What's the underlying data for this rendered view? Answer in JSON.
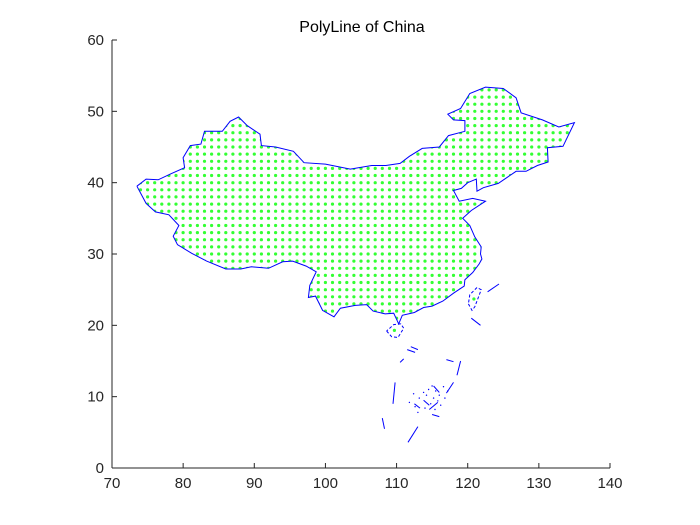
{
  "chart_data": {
    "type": "scatter",
    "title": "PolyLine of China",
    "xlabel": "",
    "ylabel": "",
    "xlim": [
      70,
      140
    ],
    "ylim": [
      0,
      60
    ],
    "xticks": [
      70,
      80,
      90,
      100,
      110,
      120,
      130,
      140
    ],
    "yticks": [
      0,
      10,
      20,
      30,
      40,
      50,
      60
    ],
    "grid": false,
    "legend": "none",
    "series": [
      {
        "kind": "polyline-outline",
        "color": "#0000ff",
        "style": "solid",
        "coords": [
          [
            73.5,
            39.5
          ],
          [
            74.8,
            40.5
          ],
          [
            76.5,
            40.4
          ],
          [
            78.2,
            41.2
          ],
          [
            80.2,
            42.1
          ],
          [
            80.0,
            43.5
          ],
          [
            81.0,
            45.2
          ],
          [
            82.5,
            45.4
          ],
          [
            83.0,
            47.2
          ],
          [
            85.5,
            47.2
          ],
          [
            86.6,
            48.6
          ],
          [
            87.8,
            49.2
          ],
          [
            89.0,
            48.0
          ],
          [
            90.8,
            46.8
          ],
          [
            91.0,
            45.2
          ],
          [
            93.0,
            45.0
          ],
          [
            95.5,
            44.4
          ],
          [
            97.0,
            42.8
          ],
          [
            100.0,
            42.6
          ],
          [
            103.5,
            41.9
          ],
          [
            106.5,
            42.4
          ],
          [
            108.5,
            42.4
          ],
          [
            110.5,
            42.7
          ],
          [
            111.8,
            43.7
          ],
          [
            113.6,
            44.8
          ],
          [
            116.0,
            45.0
          ],
          [
            117.3,
            46.6
          ],
          [
            119.6,
            47.2
          ],
          [
            119.6,
            48.7
          ],
          [
            118.0,
            48.8
          ],
          [
            117.2,
            49.6
          ],
          [
            119.0,
            50.4
          ],
          [
            120.3,
            52.5
          ],
          [
            122.5,
            53.4
          ],
          [
            125.0,
            53.2
          ],
          [
            126.8,
            51.9
          ],
          [
            127.5,
            49.8
          ],
          [
            130.5,
            48.8
          ],
          [
            132.8,
            47.8
          ],
          [
            135.0,
            48.4
          ],
          [
            133.4,
            45.1
          ],
          [
            131.2,
            44.9
          ],
          [
            131.3,
            42.9
          ],
          [
            129.8,
            42.4
          ],
          [
            128.2,
            41.6
          ],
          [
            126.8,
            41.6
          ],
          [
            124.3,
            39.9
          ],
          [
            122.2,
            39.3
          ],
          [
            121.3,
            38.8
          ],
          [
            121.2,
            40.5
          ],
          [
            120.0,
            40.0
          ],
          [
            119.1,
            39.2
          ],
          [
            118.0,
            38.9
          ],
          [
            118.8,
            37.4
          ],
          [
            120.7,
            37.8
          ],
          [
            122.5,
            37.4
          ],
          [
            120.5,
            36.1
          ],
          [
            119.3,
            35.0
          ],
          [
            120.3,
            34.0
          ],
          [
            121.0,
            32.4
          ],
          [
            121.9,
            31.0
          ],
          [
            121.8,
            30.0
          ],
          [
            122.0,
            29.3
          ],
          [
            121.6,
            28.6
          ],
          [
            120.7,
            27.4
          ],
          [
            119.6,
            26.4
          ],
          [
            119.5,
            25.5
          ],
          [
            118.0,
            24.5
          ],
          [
            116.5,
            23.4
          ],
          [
            115.0,
            22.7
          ],
          [
            113.8,
            22.5
          ],
          [
            112.5,
            21.8
          ],
          [
            110.8,
            21.4
          ],
          [
            110.3,
            20.2
          ],
          [
            109.6,
            21.7
          ],
          [
            108.4,
            21.6
          ],
          [
            106.7,
            22.0
          ],
          [
            105.8,
            22.9
          ],
          [
            104.2,
            22.8
          ],
          [
            102.1,
            22.4
          ],
          [
            101.2,
            21.2
          ],
          [
            99.6,
            22.1
          ],
          [
            98.6,
            24.1
          ],
          [
            97.6,
            23.9
          ],
          [
            97.8,
            25.6
          ],
          [
            98.7,
            27.5
          ],
          [
            97.3,
            28.3
          ],
          [
            95.4,
            29.0
          ],
          [
            94.0,
            28.9
          ],
          [
            92.0,
            28.0
          ],
          [
            89.6,
            28.2
          ],
          [
            88.1,
            27.9
          ],
          [
            86.0,
            27.9
          ],
          [
            83.3,
            29.0
          ],
          [
            81.2,
            30.1
          ],
          [
            79.2,
            31.3
          ],
          [
            78.6,
            32.5
          ],
          [
            79.4,
            34.0
          ],
          [
            78.0,
            35.5
          ],
          [
            76.1,
            35.9
          ],
          [
            74.8,
            37.1
          ],
          [
            73.5,
            39.5
          ]
        ]
      },
      {
        "kind": "fill-dots",
        "color": "#33ff33",
        "spacing_deg": 1,
        "marker": "point"
      },
      {
        "kind": "island-outlines",
        "color": "#0000ff",
        "style": "dashed",
        "islands": [
          [
            [
              120.1,
              23.0
            ],
            [
              120.6,
              22.1
            ],
            [
              121.0,
              22.6
            ],
            [
              121.6,
              24.2
            ],
            [
              121.9,
              25.0
            ],
            [
              121.3,
              25.3
            ],
            [
              120.3,
              24.3
            ],
            [
              120.1,
              23.0
            ]
          ],
          [
            [
              108.6,
              19.2
            ],
            [
              109.3,
              18.4
            ],
            [
              110.2,
              18.3
            ],
            [
              111.0,
              19.6
            ],
            [
              110.6,
              20.2
            ],
            [
              109.6,
              20.1
            ],
            [
              108.6,
              19.2
            ]
          ]
        ],
        "dashes": [
          [
            [
              122.8,
              24.7
            ],
            [
              124.4,
              25.8
            ]
          ],
          [
            [
              120.5,
              21.0
            ],
            [
              121.8,
              20.0
            ]
          ],
          [
            [
              111.5,
              16.6
            ],
            [
              112.6,
              16.2
            ]
          ],
          [
            [
              117.0,
              15.2
            ],
            [
              118.0,
              14.9
            ]
          ],
          [
            [
              119.0,
              15.0
            ],
            [
              118.5,
              13.0
            ]
          ],
          [
            [
              118.0,
              12.0
            ],
            [
              117.0,
              10.5
            ]
          ],
          [
            [
              115.8,
              9.2
            ],
            [
              114.6,
              8.2
            ]
          ],
          [
            [
              113.0,
              5.8
            ],
            [
              111.6,
              3.6
            ]
          ],
          [
            [
              108.0,
              7.0
            ],
            [
              108.3,
              5.5
            ]
          ],
          [
            [
              109.8,
              12.0
            ],
            [
              109.5,
              9.0
            ]
          ],
          [
            [
              111.0,
              15.3
            ],
            [
              110.5,
              14.8
            ]
          ],
          [
            [
              112.0,
              17.0
            ],
            [
              113.0,
              16.6
            ]
          ],
          [
            [
              115.2,
              11.5
            ],
            [
              116.0,
              10.6
            ]
          ],
          [
            [
              113.8,
              9.5
            ],
            [
              114.6,
              8.8
            ]
          ],
          [
            [
              112.5,
              9.0
            ],
            [
              113.3,
              8.4
            ]
          ],
          [
            [
              115.0,
              7.5
            ],
            [
              116.0,
              7.2
            ]
          ]
        ],
        "specks": [
          [
            115.0,
            11.5
          ],
          [
            114.5,
            11.0
          ],
          [
            114.2,
            10.2
          ],
          [
            115.5,
            10.8
          ],
          [
            116.0,
            10.2
          ],
          [
            115.2,
            9.8
          ],
          [
            114.8,
            9.0
          ],
          [
            115.8,
            9.4
          ],
          [
            116.2,
            8.8
          ],
          [
            113.8,
            10.6
          ],
          [
            113.2,
            9.8
          ],
          [
            112.4,
            10.4
          ],
          [
            114.0,
            8.4
          ],
          [
            115.4,
            8.2
          ],
          [
            116.8,
            9.8
          ],
          [
            117.2,
            10.8
          ],
          [
            116.6,
            11.4
          ],
          [
            113.0,
            7.8
          ],
          [
            112.6,
            8.6
          ],
          [
            111.8,
            9.2
          ]
        ]
      }
    ]
  }
}
